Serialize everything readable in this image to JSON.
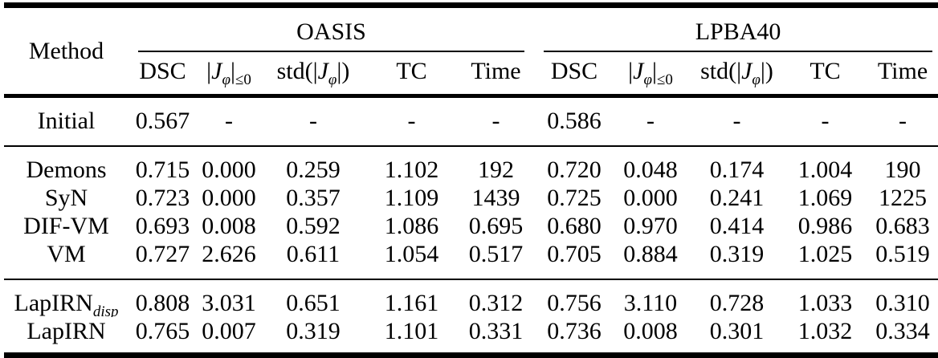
{
  "page": {
    "background": "#ffffff",
    "text_color": "#000000",
    "rule_color": "#000000"
  },
  "table": {
    "method_header": "Method",
    "groups": [
      {
        "id": "oasis",
        "label": "OASIS"
      },
      {
        "id": "lpba40",
        "label": "LPBA40"
      }
    ],
    "columns": [
      {
        "id": "dsc",
        "label": "DSC"
      },
      {
        "id": "jac-le0",
        "math": true,
        "pre": "|",
        "var": "J",
        "varsub": "φ",
        "post": "|",
        "sub": "≤0"
      },
      {
        "id": "std-jac",
        "math": true,
        "pre": "std(|",
        "var": "J",
        "varsub": "φ",
        "post": "|)",
        "sub": ""
      },
      {
        "id": "tc",
        "label": "TC"
      },
      {
        "id": "time",
        "label": "Time"
      }
    ],
    "rows": [
      {
        "method": "Initial",
        "method_sub": "",
        "oasis": [
          "0.567",
          "-",
          "-",
          "-",
          "-"
        ],
        "lpba40": [
          "0.586",
          "-",
          "-",
          "-",
          "-"
        ],
        "rule_after": true
      },
      {
        "method": "Demons",
        "method_sub": "",
        "oasis": [
          "0.715",
          "0.000",
          "0.259",
          "1.102",
          "192"
        ],
        "lpba40": [
          "0.720",
          "0.048",
          "0.174",
          "1.004",
          "190"
        ],
        "rule_after": false
      },
      {
        "method": "SyN",
        "method_sub": "",
        "oasis": [
          "0.723",
          "0.000",
          "0.357",
          "1.109",
          "1439"
        ],
        "lpba40": [
          "0.725",
          "0.000",
          "0.241",
          "1.069",
          "1225"
        ],
        "rule_after": false
      },
      {
        "method": "DIF-VM",
        "method_sub": "",
        "oasis": [
          "0.693",
          "0.008",
          "0.592",
          "1.086",
          "0.695"
        ],
        "lpba40": [
          "0.680",
          "0.970",
          "0.414",
          "0.986",
          "0.683"
        ],
        "rule_after": false
      },
      {
        "method": "VM",
        "method_sub": "",
        "oasis": [
          "0.727",
          "2.626",
          "0.611",
          "1.054",
          "0.517"
        ],
        "lpba40": [
          "0.705",
          "0.884",
          "0.319",
          "1.025",
          "0.519"
        ],
        "rule_after": true
      },
      {
        "method": "LapIRN",
        "method_sub": "disp",
        "oasis": [
          "0.808",
          "3.031",
          "0.651",
          "1.161",
          "0.312"
        ],
        "lpba40": [
          "0.756",
          "3.110",
          "0.728",
          "1.033",
          "0.310"
        ],
        "rule_after": false
      },
      {
        "method": "LapIRN",
        "method_sub": "",
        "oasis": [
          "0.765",
          "0.007",
          "0.319",
          "1.101",
          "0.331"
        ],
        "lpba40": [
          "0.736",
          "0.008",
          "0.301",
          "1.032",
          "0.334"
        ],
        "rule_after": false
      }
    ]
  }
}
